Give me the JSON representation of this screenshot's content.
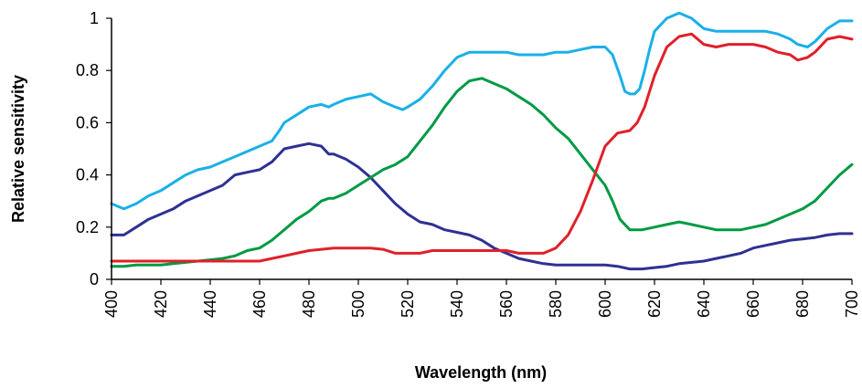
{
  "chart_data": {
    "type": "line",
    "title": "",
    "xlabel": "Wavelength (nm)",
    "ylabel": "Relative sensitivity",
    "xlim": [
      400,
      700
    ],
    "ylim": [
      0,
      1
    ],
    "xticks": [
      400,
      420,
      440,
      460,
      480,
      500,
      520,
      540,
      560,
      580,
      600,
      620,
      640,
      660,
      680,
      700
    ],
    "yticks": [
      0,
      0.2,
      0.4,
      0.6,
      0.8,
      1
    ],
    "ytick_labels": [
      "0",
      "0.2",
      "0.4",
      "0.6",
      "0.8",
      "1"
    ],
    "grid": false,
    "legend": "none",
    "series": [
      {
        "color": "#1ab0e8",
        "points": [
          [
            400,
            0.29
          ],
          [
            405,
            0.27
          ],
          [
            410,
            0.29
          ],
          [
            415,
            0.32
          ],
          [
            420,
            0.34
          ],
          [
            425,
            0.37
          ],
          [
            430,
            0.4
          ],
          [
            435,
            0.42
          ],
          [
            440,
            0.43
          ],
          [
            445,
            0.45
          ],
          [
            450,
            0.47
          ],
          [
            455,
            0.49
          ],
          [
            460,
            0.51
          ],
          [
            465,
            0.53
          ],
          [
            468,
            0.57
          ],
          [
            470,
            0.6
          ],
          [
            475,
            0.63
          ],
          [
            480,
            0.66
          ],
          [
            485,
            0.67
          ],
          [
            488,
            0.66
          ],
          [
            490,
            0.67
          ],
          [
            495,
            0.69
          ],
          [
            500,
            0.7
          ],
          [
            505,
            0.71
          ],
          [
            510,
            0.68
          ],
          [
            515,
            0.66
          ],
          [
            518,
            0.65
          ],
          [
            520,
            0.66
          ],
          [
            525,
            0.69
          ],
          [
            530,
            0.74
          ],
          [
            535,
            0.8
          ],
          [
            540,
            0.85
          ],
          [
            545,
            0.87
          ],
          [
            550,
            0.87
          ],
          [
            555,
            0.87
          ],
          [
            560,
            0.87
          ],
          [
            565,
            0.86
          ],
          [
            570,
            0.86
          ],
          [
            575,
            0.86
          ],
          [
            580,
            0.87
          ],
          [
            585,
            0.87
          ],
          [
            590,
            0.88
          ],
          [
            595,
            0.89
          ],
          [
            600,
            0.89
          ],
          [
            603,
            0.86
          ],
          [
            606,
            0.78
          ],
          [
            608,
            0.72
          ],
          [
            610,
            0.71
          ],
          [
            612,
            0.71
          ],
          [
            614,
            0.73
          ],
          [
            616,
            0.8
          ],
          [
            618,
            0.88
          ],
          [
            620,
            0.95
          ],
          [
            625,
            1.0
          ],
          [
            630,
            1.02
          ],
          [
            635,
            1.0
          ],
          [
            640,
            0.96
          ],
          [
            645,
            0.95
          ],
          [
            650,
            0.95
          ],
          [
            655,
            0.95
          ],
          [
            660,
            0.95
          ],
          [
            665,
            0.95
          ],
          [
            670,
            0.94
          ],
          [
            675,
            0.92
          ],
          [
            678,
            0.9
          ],
          [
            682,
            0.89
          ],
          [
            685,
            0.91
          ],
          [
            690,
            0.96
          ],
          [
            695,
            0.99
          ],
          [
            700,
            0.99
          ]
        ]
      },
      {
        "color": "#2e3192",
        "points": [
          [
            400,
            0.17
          ],
          [
            405,
            0.17
          ],
          [
            410,
            0.2
          ],
          [
            415,
            0.23
          ],
          [
            420,
            0.25
          ],
          [
            425,
            0.27
          ],
          [
            430,
            0.3
          ],
          [
            435,
            0.32
          ],
          [
            440,
            0.34
          ],
          [
            445,
            0.36
          ],
          [
            450,
            0.4
          ],
          [
            455,
            0.41
          ],
          [
            460,
            0.42
          ],
          [
            465,
            0.45
          ],
          [
            470,
            0.5
          ],
          [
            475,
            0.51
          ],
          [
            480,
            0.52
          ],
          [
            485,
            0.51
          ],
          [
            488,
            0.48
          ],
          [
            490,
            0.48
          ],
          [
            495,
            0.46
          ],
          [
            500,
            0.43
          ],
          [
            505,
            0.39
          ],
          [
            510,
            0.34
          ],
          [
            515,
            0.29
          ],
          [
            520,
            0.25
          ],
          [
            525,
            0.22
          ],
          [
            530,
            0.21
          ],
          [
            535,
            0.19
          ],
          [
            540,
            0.18
          ],
          [
            545,
            0.17
          ],
          [
            550,
            0.15
          ],
          [
            555,
            0.12
          ],
          [
            560,
            0.1
          ],
          [
            565,
            0.08
          ],
          [
            570,
            0.07
          ],
          [
            575,
            0.06
          ],
          [
            580,
            0.055
          ],
          [
            590,
            0.055
          ],
          [
            600,
            0.055
          ],
          [
            605,
            0.05
          ],
          [
            610,
            0.04
          ],
          [
            615,
            0.04
          ],
          [
            620,
            0.045
          ],
          [
            625,
            0.05
          ],
          [
            630,
            0.06
          ],
          [
            635,
            0.065
          ],
          [
            640,
            0.07
          ],
          [
            645,
            0.08
          ],
          [
            650,
            0.09
          ],
          [
            655,
            0.1
          ],
          [
            660,
            0.12
          ],
          [
            665,
            0.13
          ],
          [
            670,
            0.14
          ],
          [
            675,
            0.15
          ],
          [
            680,
            0.155
          ],
          [
            685,
            0.16
          ],
          [
            690,
            0.17
          ],
          [
            695,
            0.175
          ],
          [
            700,
            0.175
          ]
        ]
      },
      {
        "color": "#009a44",
        "points": [
          [
            400,
            0.05
          ],
          [
            405,
            0.05
          ],
          [
            410,
            0.055
          ],
          [
            415,
            0.055
          ],
          [
            420,
            0.055
          ],
          [
            425,
            0.06
          ],
          [
            430,
            0.065
          ],
          [
            435,
            0.07
          ],
          [
            440,
            0.075
          ],
          [
            445,
            0.08
          ],
          [
            450,
            0.09
          ],
          [
            455,
            0.11
          ],
          [
            460,
            0.12
          ],
          [
            465,
            0.15
          ],
          [
            470,
            0.19
          ],
          [
            475,
            0.23
          ],
          [
            480,
            0.26
          ],
          [
            485,
            0.3
          ],
          [
            488,
            0.31
          ],
          [
            490,
            0.31
          ],
          [
            495,
            0.33
          ],
          [
            500,
            0.36
          ],
          [
            505,
            0.39
          ],
          [
            510,
            0.42
          ],
          [
            515,
            0.44
          ],
          [
            520,
            0.47
          ],
          [
            525,
            0.53
          ],
          [
            530,
            0.59
          ],
          [
            535,
            0.66
          ],
          [
            540,
            0.72
          ],
          [
            545,
            0.76
          ],
          [
            550,
            0.77
          ],
          [
            555,
            0.75
          ],
          [
            560,
            0.73
          ],
          [
            565,
            0.7
          ],
          [
            570,
            0.67
          ],
          [
            575,
            0.63
          ],
          [
            580,
            0.58
          ],
          [
            585,
            0.54
          ],
          [
            590,
            0.48
          ],
          [
            595,
            0.42
          ],
          [
            600,
            0.36
          ],
          [
            603,
            0.3
          ],
          [
            606,
            0.23
          ],
          [
            610,
            0.19
          ],
          [
            615,
            0.19
          ],
          [
            620,
            0.2
          ],
          [
            625,
            0.21
          ],
          [
            630,
            0.22
          ],
          [
            635,
            0.21
          ],
          [
            640,
            0.2
          ],
          [
            645,
            0.19
          ],
          [
            650,
            0.19
          ],
          [
            655,
            0.19
          ],
          [
            660,
            0.2
          ],
          [
            665,
            0.21
          ],
          [
            670,
            0.23
          ],
          [
            675,
            0.25
          ],
          [
            680,
            0.27
          ],
          [
            685,
            0.3
          ],
          [
            690,
            0.35
          ],
          [
            695,
            0.4
          ],
          [
            700,
            0.44
          ]
        ]
      },
      {
        "color": "#e0202a",
        "points": [
          [
            400,
            0.07
          ],
          [
            410,
            0.07
          ],
          [
            420,
            0.07
          ],
          [
            430,
            0.07
          ],
          [
            440,
            0.07
          ],
          [
            450,
            0.07
          ],
          [
            460,
            0.07
          ],
          [
            465,
            0.08
          ],
          [
            470,
            0.09
          ],
          [
            475,
            0.1
          ],
          [
            480,
            0.11
          ],
          [
            485,
            0.115
          ],
          [
            490,
            0.12
          ],
          [
            500,
            0.12
          ],
          [
            505,
            0.12
          ],
          [
            510,
            0.115
          ],
          [
            515,
            0.1
          ],
          [
            520,
            0.1
          ],
          [
            525,
            0.1
          ],
          [
            530,
            0.11
          ],
          [
            540,
            0.11
          ],
          [
            550,
            0.11
          ],
          [
            560,
            0.11
          ],
          [
            565,
            0.1
          ],
          [
            570,
            0.1
          ],
          [
            575,
            0.1
          ],
          [
            580,
            0.12
          ],
          [
            585,
            0.17
          ],
          [
            590,
            0.26
          ],
          [
            595,
            0.38
          ],
          [
            600,
            0.51
          ],
          [
            605,
            0.56
          ],
          [
            610,
            0.57
          ],
          [
            613,
            0.6
          ],
          [
            616,
            0.66
          ],
          [
            620,
            0.78
          ],
          [
            625,
            0.89
          ],
          [
            630,
            0.93
          ],
          [
            635,
            0.94
          ],
          [
            640,
            0.9
          ],
          [
            645,
            0.89
          ],
          [
            650,
            0.9
          ],
          [
            655,
            0.9
          ],
          [
            660,
            0.9
          ],
          [
            665,
            0.89
          ],
          [
            670,
            0.87
          ],
          [
            675,
            0.86
          ],
          [
            678,
            0.84
          ],
          [
            682,
            0.85
          ],
          [
            685,
            0.87
          ],
          [
            690,
            0.92
          ],
          [
            695,
            0.93
          ],
          [
            700,
            0.92
          ]
        ]
      }
    ]
  }
}
